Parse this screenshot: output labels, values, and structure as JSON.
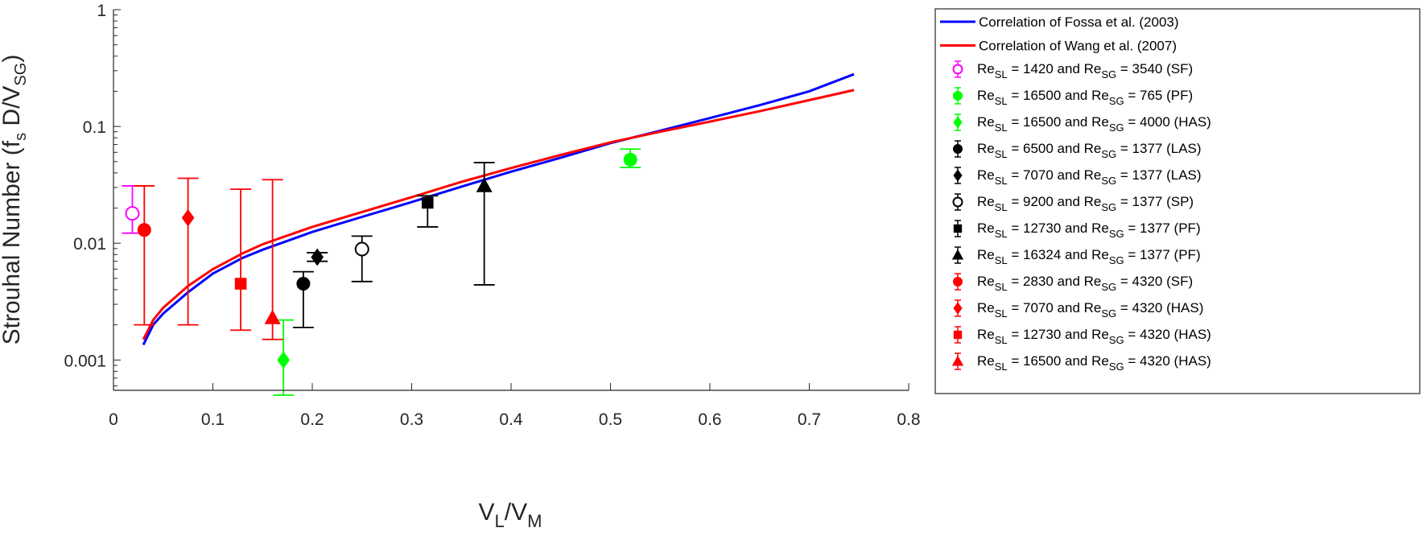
{
  "chart_data": {
    "type": "scatter",
    "xlabel": {
      "main": "V",
      "sub1": "L",
      "sep": "/V",
      "sub2": "M"
    },
    "ylabel": {
      "p1": "Strouhal Number (f",
      "s1": "s",
      "p2": " D/V",
      "s2": "SG",
      "p3": ")"
    },
    "x_axis": {
      "scale": "linear",
      "range": [
        0,
        0.8
      ],
      "ticks": [
        0,
        0.1,
        0.2,
        0.3,
        0.4,
        0.5,
        0.6,
        0.7,
        0.8
      ],
      "tick_labels": [
        "0",
        "0.1",
        "0.2",
        "0.3",
        "0.4",
        "0.5",
        "0.6",
        "0.7",
        "0.8"
      ]
    },
    "y_axis": {
      "scale": "log",
      "range": [
        0.00055,
        1
      ],
      "ticks": [
        0.001,
        0.01,
        0.1,
        1
      ],
      "tick_labels": [
        "0.001",
        "0.01",
        "0.1",
        "1"
      ]
    },
    "grid": false,
    "legend_position": "outside-right",
    "lines": [
      {
        "name": "Correlation of Fossa et al. (2003)",
        "color": "#0000ff",
        "x": [
          0.03,
          0.04,
          0.05,
          0.075,
          0.1,
          0.13,
          0.15,
          0.2,
          0.25,
          0.3,
          0.35,
          0.4,
          0.45,
          0.5,
          0.55,
          0.6,
          0.65,
          0.7,
          0.745
        ],
        "y": [
          0.00135,
          0.002,
          0.0025,
          0.0038,
          0.0055,
          0.0075,
          0.0088,
          0.0125,
          0.0168,
          0.0225,
          0.0305,
          0.041,
          0.054,
          0.072,
          0.092,
          0.118,
          0.152,
          0.2,
          0.28
        ]
      },
      {
        "name": "Correlation of Wang et al. (2007)",
        "color": "#ff0000",
        "x": [
          0.03,
          0.04,
          0.05,
          0.075,
          0.1,
          0.13,
          0.15,
          0.2,
          0.25,
          0.3,
          0.35,
          0.4,
          0.45,
          0.5,
          0.55,
          0.6,
          0.65,
          0.7,
          0.745
        ],
        "y": [
          0.0015,
          0.0022,
          0.0028,
          0.0043,
          0.006,
          0.0082,
          0.0098,
          0.0138,
          0.0185,
          0.0248,
          0.0335,
          0.044,
          0.057,
          0.073,
          0.09,
          0.11,
          0.135,
          0.168,
          0.205
        ]
      }
    ],
    "points": [
      {
        "label": {
          "a": "1420",
          "b": "3540",
          "regime": "(SF)"
        },
        "x": 0.019,
        "y": 0.018,
        "yerr": [
          0.0122,
          0.031
        ],
        "marker": "circle",
        "filled": false,
        "color": "#ff00ff"
      },
      {
        "label": {
          "a": "16500",
          "b": "765",
          "regime": "(PF)"
        },
        "x": 0.52,
        "y": 0.052,
        "yerr": [
          0.0445,
          0.064
        ],
        "marker": "circle",
        "filled": true,
        "color": "#00ff00"
      },
      {
        "label": {
          "a": "16500",
          "b": "4000",
          "regime": "(HAS)"
        },
        "x": 0.171,
        "y": 0.001,
        "yerr": [
          0.0005,
          0.0022
        ],
        "marker": "diamond",
        "filled": true,
        "color": "#00ff00"
      },
      {
        "label": {
          "a": "6500",
          "b": "1377",
          "regime": "(LAS)"
        },
        "x": 0.191,
        "y": 0.0045,
        "yerr": [
          0.0019,
          0.0057
        ],
        "marker": "circle",
        "filled": true,
        "color": "#000000"
      },
      {
        "label": {
          "a": "7070",
          "b": "1377",
          "regime": "(LAS)"
        },
        "x": 0.205,
        "y": 0.0076,
        "yerr": [
          0.007,
          0.0083
        ],
        "marker": "diamond",
        "filled": true,
        "color": "#000000"
      },
      {
        "label": {
          "a": "9200",
          "b": "1377",
          "regime": "(SP)"
        },
        "x": 0.25,
        "y": 0.0089,
        "yerr": [
          0.0047,
          0.0115
        ],
        "marker": "circle",
        "filled": false,
        "color": "#000000"
      },
      {
        "label": {
          "a": "12730",
          "b": "1377",
          "regime": "(PF)"
        },
        "x": 0.316,
        "y": 0.0222,
        "yerr": [
          0.0138,
          0.0255
        ],
        "marker": "square",
        "filled": true,
        "color": "#000000"
      },
      {
        "label": {
          "a": "16324",
          "b": "1377",
          "regime": "(PF)"
        },
        "x": 0.373,
        "y": 0.031,
        "yerr": [
          0.0044,
          0.049
        ],
        "marker": "triangle",
        "filled": true,
        "color": "#000000"
      },
      {
        "label": {
          "a": "2830",
          "b": "4320",
          "regime": "(SF)"
        },
        "x": 0.031,
        "y": 0.013,
        "yerr": [
          0.002,
          0.031
        ],
        "marker": "circle",
        "filled": true,
        "color": "#ff0000"
      },
      {
        "label": {
          "a": "7070",
          "b": "4320",
          "regime": "(HAS)"
        },
        "x": 0.075,
        "y": 0.0165,
        "yerr": [
          0.002,
          0.036
        ],
        "marker": "diamond",
        "filled": true,
        "color": "#ff0000"
      },
      {
        "label": {
          "a": "12730",
          "b": "4320",
          "regime": "(HAS)"
        },
        "x": 0.128,
        "y": 0.0045,
        "yerr": [
          0.0018,
          0.029
        ],
        "marker": "square",
        "filled": true,
        "color": "#ff0000"
      },
      {
        "label": {
          "a": "16500",
          "b": "4320",
          "regime": "(HAS)"
        },
        "x": 0.16,
        "y": 0.0023,
        "yerr": [
          0.0015,
          0.035
        ],
        "marker": "triangle",
        "filled": true,
        "color": "#ff0000"
      }
    ],
    "legend_text": {
      "re": "Re",
      "sl": "SL",
      "sg": "SG",
      "eq": " = ",
      "and": " and Re"
    }
  }
}
